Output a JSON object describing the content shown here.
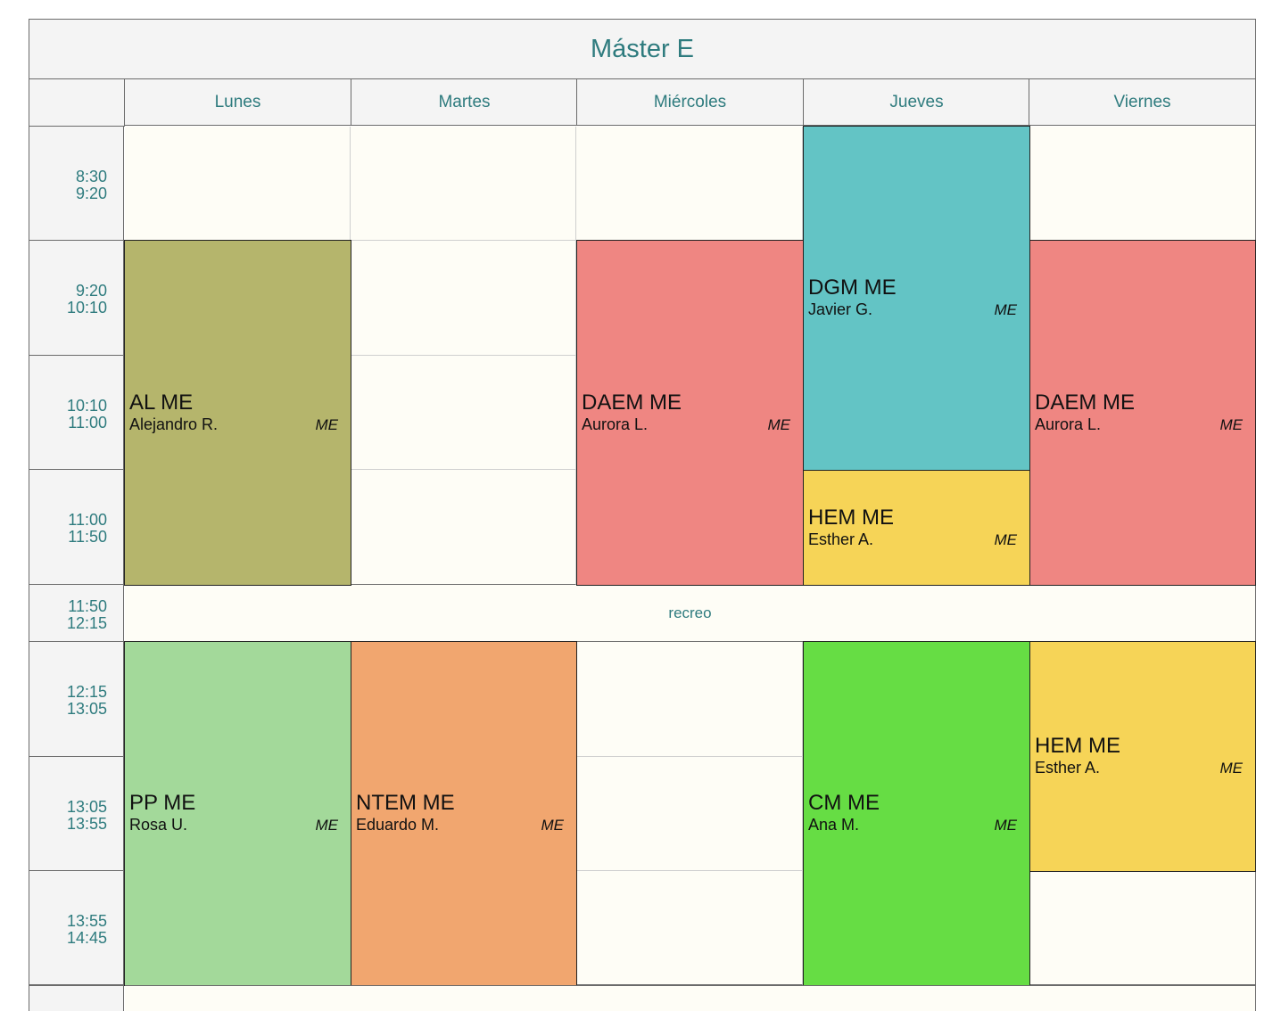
{
  "title": "Máster E",
  "days": [
    "Lunes",
    "Martes",
    "Miércoles",
    "Jueves",
    "Viernes"
  ],
  "time_slots": [
    {
      "start": "8:30",
      "end": "9:20"
    },
    {
      "start": "9:20",
      "end": "10:10"
    },
    {
      "start": "10:10",
      "end": "11:00"
    },
    {
      "start": "11:00",
      "end": "11:50"
    },
    {
      "start": "11:50",
      "end": "12:15"
    },
    {
      "start": "12:15",
      "end": "13:05"
    },
    {
      "start": "13:05",
      "end": "13:55"
    },
    {
      "start": "13:55",
      "end": "14:45"
    }
  ],
  "break_label": "recreo",
  "classes": [
    {
      "subject": "AL ME",
      "teacher": "Alejandro R.",
      "group": "ME",
      "color": "#b5b56c"
    },
    {
      "subject": "DAEM ME",
      "teacher": "Aurora L.",
      "group": "ME",
      "color": "#ef8682"
    },
    {
      "subject": "DGM ME",
      "teacher": "Javier G.",
      "group": "ME",
      "color": "#63c4c5"
    },
    {
      "subject": "HEM ME",
      "teacher": "Esther A.",
      "group": "ME",
      "color": "#f6d457"
    },
    {
      "subject": "DAEM ME",
      "teacher": "Aurora L.",
      "group": "ME",
      "color": "#ef8682"
    },
    {
      "subject": "PP ME",
      "teacher": "Rosa U.",
      "group": "ME",
      "color": "#a3d99a"
    },
    {
      "subject": "NTEM ME",
      "teacher": "Eduardo M.",
      "group": "ME",
      "color": "#f1a66f"
    },
    {
      "subject": "CM ME",
      "teacher": "Ana M.",
      "group": "ME",
      "color": "#66dd44"
    },
    {
      "subject": "HEM ME",
      "teacher": "Esther A.",
      "group": "ME",
      "color": "#f6d457"
    }
  ]
}
